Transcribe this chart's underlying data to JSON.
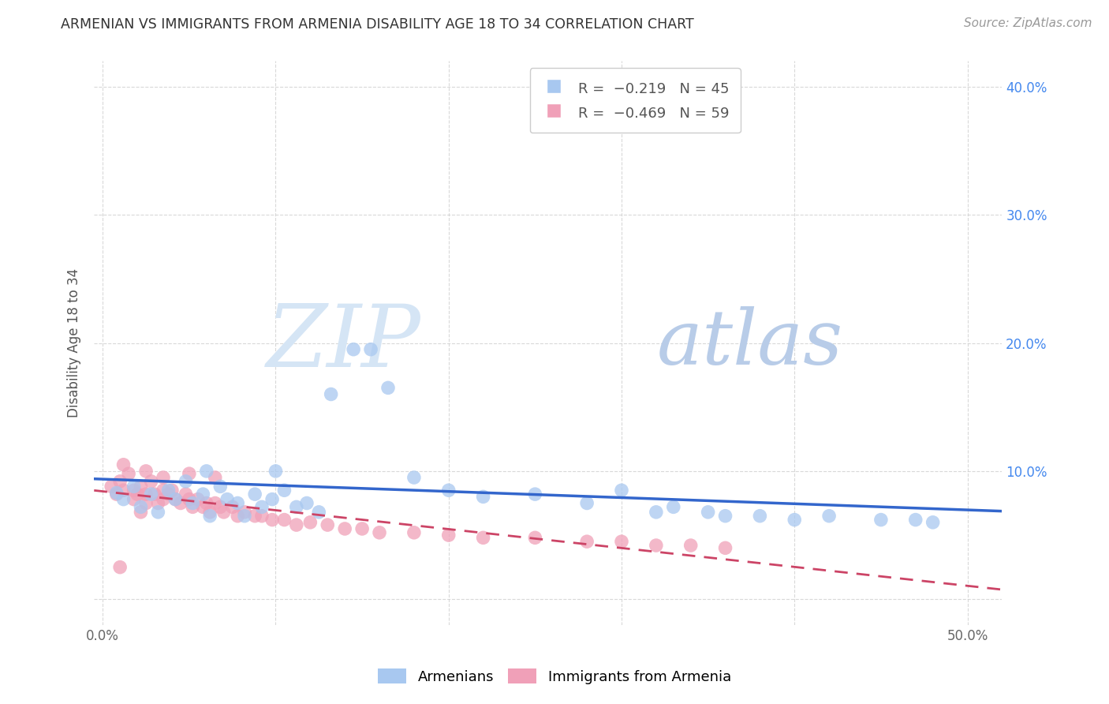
{
  "title": "ARMENIAN VS IMMIGRANTS FROM ARMENIA DISABILITY AGE 18 TO 34 CORRELATION CHART",
  "source": "Source: ZipAtlas.com",
  "ylabel": "Disability Age 18 to 34",
  "xlim": [
    -0.005,
    0.52
  ],
  "ylim": [
    -0.02,
    0.42
  ],
  "blue_color": "#a8c8f0",
  "pink_color": "#f0a0b8",
  "blue_line_color": "#3366cc",
  "pink_line_color": "#cc4466",
  "background_color": "#ffffff",
  "grid_color": "#d0d0d0",
  "legend_label1": "Armenians",
  "legend_label2": "Immigrants from Armenia",
  "r1": "-0.219",
  "n1": "45",
  "r2": "-0.469",
  "n2": "59",
  "blue_scatter_x": [
    0.008,
    0.012,
    0.018,
    0.022,
    0.028,
    0.032,
    0.038,
    0.042,
    0.048,
    0.052,
    0.058,
    0.062,
    0.068,
    0.072,
    0.078,
    0.082,
    0.088,
    0.092,
    0.098,
    0.105,
    0.112,
    0.118,
    0.125,
    0.132,
    0.145,
    0.155,
    0.165,
    0.18,
    0.2,
    0.22,
    0.25,
    0.28,
    0.3,
    0.33,
    0.35,
    0.38,
    0.4,
    0.42,
    0.45,
    0.48,
    0.06,
    0.1,
    0.32,
    0.36,
    0.47
  ],
  "blue_scatter_y": [
    0.083,
    0.078,
    0.088,
    0.072,
    0.082,
    0.068,
    0.085,
    0.078,
    0.092,
    0.075,
    0.082,
    0.065,
    0.088,
    0.078,
    0.075,
    0.065,
    0.082,
    0.072,
    0.078,
    0.085,
    0.072,
    0.075,
    0.068,
    0.16,
    0.195,
    0.195,
    0.165,
    0.095,
    0.085,
    0.08,
    0.082,
    0.075,
    0.085,
    0.072,
    0.068,
    0.065,
    0.062,
    0.065,
    0.062,
    0.06,
    0.1,
    0.1,
    0.068,
    0.065,
    0.062
  ],
  "pink_scatter_x": [
    0.005,
    0.008,
    0.01,
    0.012,
    0.015,
    0.018,
    0.018,
    0.02,
    0.022,
    0.025,
    0.025,
    0.028,
    0.03,
    0.032,
    0.035,
    0.035,
    0.038,
    0.04,
    0.042,
    0.045,
    0.048,
    0.05,
    0.052,
    0.055,
    0.058,
    0.06,
    0.062,
    0.065,
    0.068,
    0.07,
    0.075,
    0.078,
    0.082,
    0.088,
    0.092,
    0.098,
    0.105,
    0.112,
    0.12,
    0.13,
    0.14,
    0.15,
    0.16,
    0.18,
    0.2,
    0.22,
    0.25,
    0.28,
    0.3,
    0.32,
    0.34,
    0.36,
    0.012,
    0.025,
    0.035,
    0.05,
    0.065,
    0.01,
    0.022
  ],
  "pink_scatter_y": [
    0.088,
    0.082,
    0.092,
    0.085,
    0.098,
    0.085,
    0.078,
    0.082,
    0.088,
    0.082,
    0.075,
    0.092,
    0.082,
    0.075,
    0.085,
    0.078,
    0.082,
    0.085,
    0.078,
    0.075,
    0.082,
    0.078,
    0.072,
    0.078,
    0.072,
    0.075,
    0.068,
    0.075,
    0.072,
    0.068,
    0.072,
    0.065,
    0.068,
    0.065,
    0.065,
    0.062,
    0.062,
    0.058,
    0.06,
    0.058,
    0.055,
    0.055,
    0.052,
    0.052,
    0.05,
    0.048,
    0.048,
    0.045,
    0.045,
    0.042,
    0.042,
    0.04,
    0.105,
    0.1,
    0.095,
    0.098,
    0.095,
    0.025,
    0.068
  ]
}
